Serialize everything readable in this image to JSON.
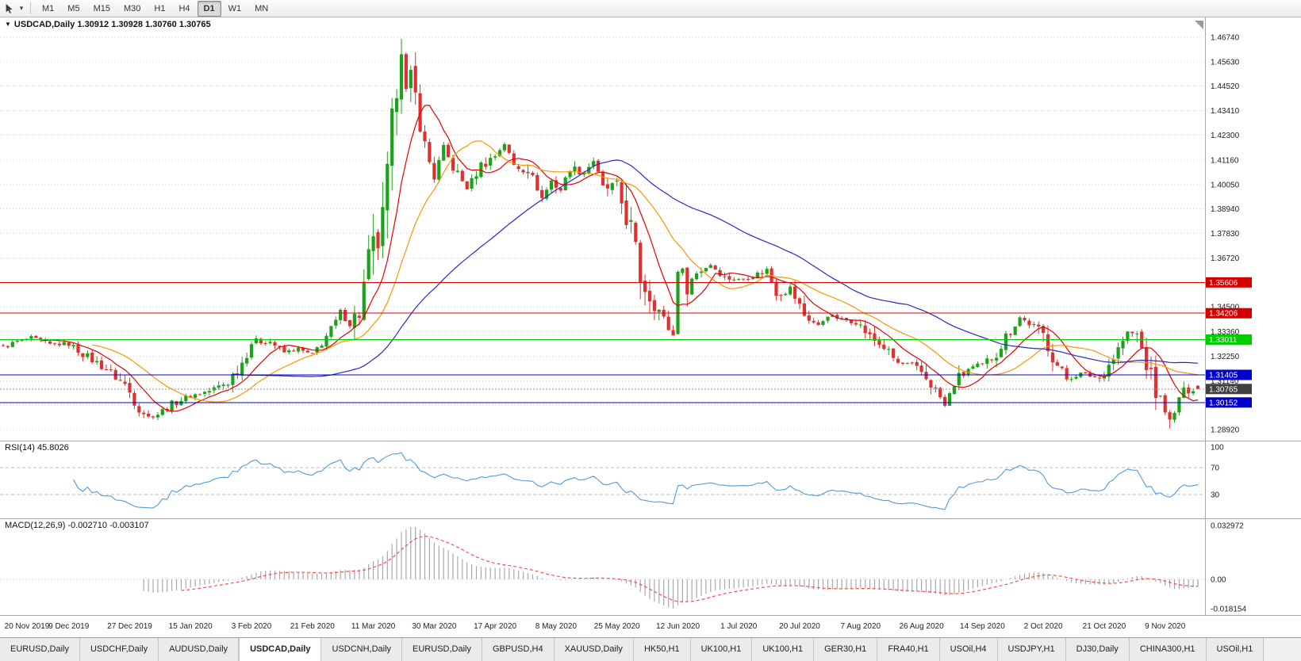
{
  "toolbar": {
    "caret_glyph": "▾",
    "timeframes": [
      "M1",
      "M5",
      "M15",
      "M30",
      "H1",
      "H4",
      "D1",
      "W1",
      "MN"
    ],
    "active_timeframe": "D1"
  },
  "chart": {
    "marker": "▼",
    "title_symbol": "USDCAD,Daily",
    "title_ohlc": "1.30912 1.30928 1.30760 1.30765",
    "rsi_label": "RSI(14) 45.8026",
    "macd_label": "MACD(12,26,9) -0.002710 -0.003107"
  },
  "chart_data": {
    "type": "candlestick",
    "symbol": "USDCAD",
    "timeframe": "Daily",
    "last_ohlc": {
      "open": 1.30912,
      "high": 1.30928,
      "low": 1.3076,
      "close": 1.30765
    },
    "bar_count": 256,
    "y_ticks": [
      "1.46740",
      "1.45630",
      "1.44520",
      "1.43410",
      "1.42300",
      "1.41160",
      "1.40050",
      "1.38940",
      "1.37830",
      "1.36720",
      "1.34500",
      "1.33360",
      "1.32250",
      "1.31140",
      "1.30030",
      "1.28920"
    ],
    "levels": [
      {
        "price": 1.35606,
        "label": "1.35606",
        "color": "#d40000"
      },
      {
        "price": 1.34206,
        "label": "1.34206",
        "color": "#d40000"
      },
      {
        "price": 1.33011,
        "label": "1.33011",
        "color": "#00cc00"
      },
      {
        "price": 1.31405,
        "label": "1.31405",
        "color": "#0000cc"
      },
      {
        "price": 1.30152,
        "label": "1.30152",
        "color": "#0000cc"
      }
    ],
    "current_price": {
      "value": 1.30765,
      "label": "1.30765",
      "color": "#404040"
    },
    "x_labels": [
      "20 Nov 2019",
      "9 Dec 2019",
      "27 Dec 2019",
      "15 Jan 2020",
      "3 Feb 2020",
      "21 Feb 2020",
      "11 Mar 2020",
      "30 Mar 2020",
      "17 Apr 2020",
      "8 May 2020",
      "25 May 2020",
      "12 Jun 2020",
      "1 Jul 2020",
      "20 Jul 2020",
      "7 Aug 2020",
      "26 Aug 2020",
      "14 Sep 2020",
      "2 Oct 2020",
      "21 Oct 2020",
      "9 Nov 2020"
    ],
    "price_anchors": [
      [
        0,
        1.3265
      ],
      [
        3,
        1.3292
      ],
      [
        6,
        1.3308
      ],
      [
        10,
        1.3278
      ],
      [
        14,
        1.3282
      ],
      [
        18,
        1.3222
      ],
      [
        22,
        1.3168
      ],
      [
        26,
        1.3095
      ],
      [
        29,
        1.2992
      ],
      [
        31,
        1.2948
      ],
      [
        33,
        1.2962
      ],
      [
        36,
        1.3008
      ],
      [
        40,
        1.3045
      ],
      [
        44,
        1.3068
      ],
      [
        48,
        1.3108
      ],
      [
        51,
        1.3198
      ],
      [
        53,
        1.3288
      ],
      [
        57,
        1.3292
      ],
      [
        60,
        1.3242
      ],
      [
        63,
        1.3258
      ],
      [
        66,
        1.3228
      ],
      [
        68,
        1.3292
      ],
      [
        70,
        1.3342
      ],
      [
        72,
        1.3422
      ],
      [
        74,
        1.3382
      ],
      [
        76,
        1.3422
      ],
      [
        78,
        1.3662
      ],
      [
        80,
        1.3752
      ],
      [
        81,
        1.3802
      ],
      [
        82,
        1.3992
      ],
      [
        83,
        1.4252
      ],
      [
        84,
        1.4492
      ],
      [
        85,
        1.4652
      ],
      [
        86,
        1.4432
      ],
      [
        87,
        1.4482
      ],
      [
        89,
        1.4302
      ],
      [
        90,
        1.4172
      ],
      [
        92,
        1.4042
      ],
      [
        94,
        1.4172
      ],
      [
        96,
        1.4082
      ],
      [
        99,
        1.3988
      ],
      [
        102,
        1.4092
      ],
      [
        105,
        1.4136
      ],
      [
        107,
        1.4192
      ],
      [
        109,
        1.4092
      ],
      [
        112,
        1.4078
      ],
      [
        115,
        1.3942
      ],
      [
        117,
        1.4022
      ],
      [
        119,
        1.3982
      ],
      [
        121,
        1.4078
      ],
      [
        124,
        1.4062
      ],
      [
        126,
        1.4116
      ],
      [
        128,
        1.3988
      ],
      [
        131,
        1.3992
      ],
      [
        132,
        1.3922
      ],
      [
        134,
        1.3802
      ],
      [
        136,
        1.3582
      ],
      [
        138,
        1.3502
      ],
      [
        140,
        1.3432
      ],
      [
        142,
        1.3352
      ],
      [
        143,
        1.3318
      ],
      [
        144,
        1.3632
      ],
      [
        146,
        1.3552
      ],
      [
        148,
        1.3602
      ],
      [
        151,
        1.3642
      ],
      [
        154,
        1.3582
      ],
      [
        157,
        1.3572
      ],
      [
        160,
        1.3592
      ],
      [
        163,
        1.3618
      ],
      [
        165,
        1.3512
      ],
      [
        168,
        1.3532
      ],
      [
        171,
        1.3412
      ],
      [
        174,
        1.3362
      ],
      [
        176,
        1.3412
      ],
      [
        179,
        1.3392
      ],
      [
        182,
        1.3386
      ],
      [
        185,
        1.3312
      ],
      [
        188,
        1.3266
      ],
      [
        191,
        1.3192
      ],
      [
        194,
        1.3182
      ],
      [
        196,
        1.3152
      ],
      [
        198,
        1.3102
      ],
      [
        200,
        1.3038
      ],
      [
        201,
        1.2998
      ],
      [
        203,
        1.3102
      ],
      [
        206,
        1.3166
      ],
      [
        209,
        1.3182
      ],
      [
        212,
        1.3242
      ],
      [
        214,
        1.3312
      ],
      [
        217,
        1.3402
      ],
      [
        219,
        1.3372
      ],
      [
        222,
        1.3322
      ],
      [
        225,
        1.3182
      ],
      [
        227,
        1.3122
      ],
      [
        230,
        1.3146
      ],
      [
        234,
        1.3126
      ],
      [
        237,
        1.3222
      ],
      [
        240,
        1.3332
      ],
      [
        242,
        1.3322
      ],
      [
        244,
        1.3192
      ],
      [
        245,
        1.3122
      ],
      [
        246,
        1.3062
      ],
      [
        248,
        1.2985
      ],
      [
        249,
        1.2932
      ],
      [
        250,
        1.2962
      ],
      [
        251,
        1.3042
      ],
      [
        253,
        1.3075
      ],
      [
        255,
        1.30765
      ]
    ],
    "moving_averages": [
      {
        "period": 9,
        "color": "#e80000",
        "name": "fast-ma"
      },
      {
        "period": 20,
        "color": "#ff9500",
        "name": "mid-ma"
      },
      {
        "period": 50,
        "color": "#2929c8",
        "name": "slow-ma"
      }
    ],
    "rsi": {
      "period": 14,
      "value": 45.8026,
      "levels": [
        70,
        30
      ],
      "scale_labels": [
        "100",
        "70",
        "30"
      ],
      "color": "#4f9bd9"
    },
    "macd": {
      "fast": 12,
      "slow": 26,
      "signal": 9,
      "macd_value": -0.00271,
      "signal_value": -0.003107,
      "scale_labels": [
        "0.032972",
        "0.00",
        "-0.018154"
      ],
      "hist_color": "#a8a8a8",
      "signal_color": "#ff4040"
    },
    "candle_up_color": "#1ca11c",
    "candle_down_color": "#e03030",
    "grid_color": "#d4d4d4"
  },
  "tabs": {
    "active_index": 3,
    "items": [
      "EURUSD,Daily",
      "USDCHF,Daily",
      "AUDUSD,Daily",
      "USDCAD,Daily",
      "USDCNH,Daily",
      "EURUSD,Daily",
      "GBPUSD,H4",
      "XAUUSD,Daily",
      "HK50,H1",
      "UK100,H1",
      "UK100,H1",
      "GER30,H1",
      "FRA40,H1",
      "USOil,H4",
      "USDJPY,H1",
      "DJ30,Daily",
      "CHINA300,H1",
      "USOil,H1"
    ]
  }
}
